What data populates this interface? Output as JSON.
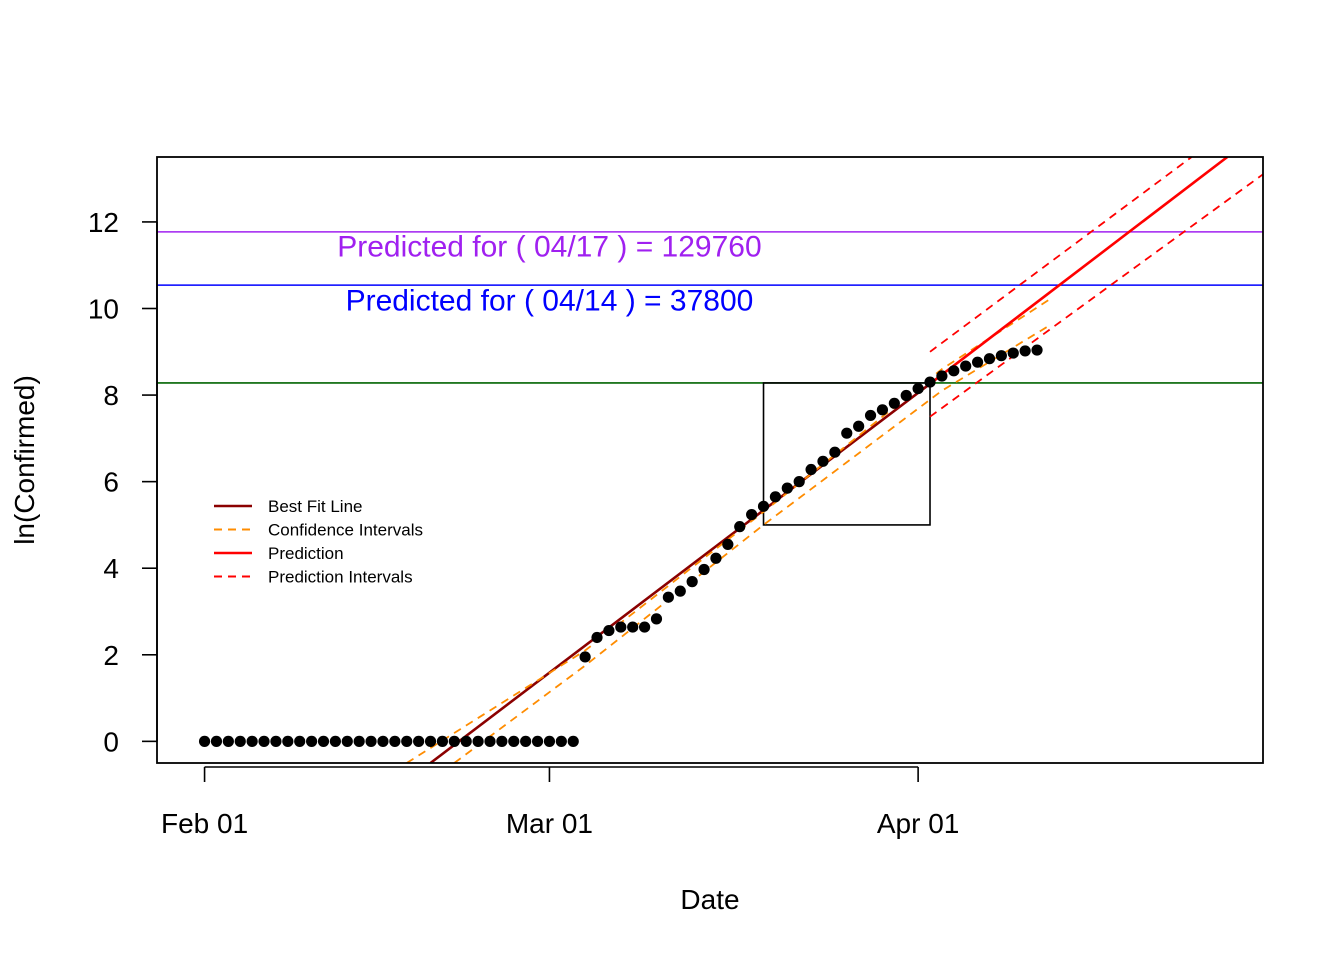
{
  "chart_data": {
    "type": "scatter",
    "title": "",
    "xlabel": "Date",
    "ylabel": "ln(Confirmed)",
    "xlim": [
      "2020-01-28",
      "2020-04-30"
    ],
    "ylim": [
      -0.5,
      13.5
    ],
    "x_ticks": [
      {
        "label": "Feb 01",
        "date": "2020-02-01"
      },
      {
        "label": "Mar 01",
        "date": "2020-03-01"
      },
      {
        "label": "Apr 01",
        "date": "2020-04-01"
      }
    ],
    "y_ticks": [
      0,
      2,
      4,
      6,
      8,
      10,
      12
    ],
    "grid": false,
    "legend_position": "left-middle",
    "series": [
      {
        "name": "ln(Confirmed)",
        "style": "points",
        "color": "#000000",
        "points": [
          [
            "2020-02-01",
            0
          ],
          [
            "2020-02-02",
            0
          ],
          [
            "2020-02-03",
            0
          ],
          [
            "2020-02-04",
            0
          ],
          [
            "2020-02-05",
            0
          ],
          [
            "2020-02-06",
            0
          ],
          [
            "2020-02-07",
            0
          ],
          [
            "2020-02-08",
            0
          ],
          [
            "2020-02-09",
            0
          ],
          [
            "2020-02-10",
            0
          ],
          [
            "2020-02-11",
            0
          ],
          [
            "2020-02-12",
            0
          ],
          [
            "2020-02-13",
            0
          ],
          [
            "2020-02-14",
            0
          ],
          [
            "2020-02-15",
            0
          ],
          [
            "2020-02-16",
            0
          ],
          [
            "2020-02-17",
            0
          ],
          [
            "2020-02-18",
            0
          ],
          [
            "2020-02-19",
            0
          ],
          [
            "2020-02-20",
            0
          ],
          [
            "2020-02-21",
            0
          ],
          [
            "2020-02-22",
            0
          ],
          [
            "2020-02-23",
            0
          ],
          [
            "2020-02-24",
            0
          ],
          [
            "2020-02-25",
            0
          ],
          [
            "2020-02-26",
            0
          ],
          [
            "2020-02-27",
            0
          ],
          [
            "2020-02-28",
            0
          ],
          [
            "2020-02-29",
            0
          ],
          [
            "2020-03-01",
            0
          ],
          [
            "2020-03-02",
            0
          ],
          [
            "2020-03-03",
            0
          ],
          [
            "2020-03-04",
            1.95
          ],
          [
            "2020-03-05",
            2.4
          ],
          [
            "2020-03-06",
            2.56
          ],
          [
            "2020-03-07",
            2.64
          ],
          [
            "2020-03-08",
            2.64
          ],
          [
            "2020-03-09",
            2.64
          ],
          [
            "2020-03-10",
            2.83
          ],
          [
            "2020-03-11",
            3.33
          ],
          [
            "2020-03-12",
            3.47
          ],
          [
            "2020-03-13",
            3.69
          ],
          [
            "2020-03-14",
            3.97
          ],
          [
            "2020-03-15",
            4.23
          ],
          [
            "2020-03-16",
            4.55
          ],
          [
            "2020-03-17",
            4.96
          ],
          [
            "2020-03-18",
            5.24
          ],
          [
            "2020-03-19",
            5.43
          ],
          [
            "2020-03-20",
            5.65
          ],
          [
            "2020-03-21",
            5.85
          ],
          [
            "2020-03-22",
            6.0
          ],
          [
            "2020-03-23",
            6.28
          ],
          [
            "2020-03-24",
            6.47
          ],
          [
            "2020-03-25",
            6.68
          ],
          [
            "2020-03-26",
            7.12
          ],
          [
            "2020-03-27",
            7.28
          ],
          [
            "2020-03-28",
            7.53
          ],
          [
            "2020-03-29",
            7.66
          ],
          [
            "2020-03-30",
            7.81
          ],
          [
            "2020-03-31",
            7.99
          ],
          [
            "2020-04-01",
            8.15
          ],
          [
            "2020-04-02",
            8.3
          ],
          [
            "2020-04-03",
            8.44
          ],
          [
            "2020-04-04",
            8.56
          ],
          [
            "2020-04-05",
            8.67
          ],
          [
            "2020-04-06",
            8.76
          ],
          [
            "2020-04-07",
            8.84
          ],
          [
            "2020-04-08",
            8.91
          ],
          [
            "2020-04-09",
            8.97
          ],
          [
            "2020-04-10",
            9.02
          ],
          [
            "2020-04-11",
            9.04
          ]
        ]
      },
      {
        "name": "Best Fit Line",
        "style": "solid",
        "color": "#8b0000",
        "points": [
          [
            "2020-02-20",
            -0.5
          ],
          [
            "2020-04-02",
            8.26
          ]
        ]
      },
      {
        "name": "Confidence Intervals",
        "style": "dashed",
        "color": "#ff8c00",
        "points": [
          [
            "2020-02-18",
            -0.5
          ],
          [
            "2020-03-04",
            2.1
          ],
          [
            "2020-03-19",
            5.3
          ],
          [
            "2020-04-03",
            8.6
          ],
          [
            "2020-04-12",
            10.2
          ]
        ]
      },
      {
        "name": "Confidence Intervals",
        "style": "dashed",
        "color": "#ff8c00",
        "points": [
          [
            "2020-02-22",
            -0.5
          ],
          [
            "2020-03-04",
            1.75
          ],
          [
            "2020-03-19",
            5.0
          ],
          [
            "2020-04-03",
            8.1
          ],
          [
            "2020-04-12",
            9.6
          ]
        ]
      },
      {
        "name": "Prediction",
        "style": "solid",
        "color": "#ff0000",
        "points": [
          [
            "2020-04-02",
            8.26
          ],
          [
            "2020-04-27",
            13.5
          ]
        ]
      },
      {
        "name": "Prediction Intervals",
        "style": "dashed",
        "color": "#ff0000",
        "points": [
          [
            "2020-04-02",
            9.0
          ],
          [
            "2020-04-24",
            13.5
          ]
        ]
      },
      {
        "name": "Prediction Intervals",
        "style": "dashed",
        "color": "#ff0000",
        "points": [
          [
            "2020-04-02",
            7.5
          ],
          [
            "2020-04-30",
            13.1
          ]
        ]
      }
    ],
    "hlines": [
      {
        "y": 11.77,
        "color": "#a020f0"
      },
      {
        "y": 10.54,
        "color": "#0000ff"
      },
      {
        "y": 8.28,
        "color": "#006400"
      }
    ],
    "rect": {
      "x0": "2020-03-19",
      "x1": "2020-04-02",
      "y0": 5.0,
      "y1": 8.28,
      "color": "#000000"
    },
    "annotations": [
      {
        "text": "Predicted for ( 04/17 ) = 129760",
        "x": "2020-03-01",
        "y": 11.2,
        "color": "#a020f0"
      },
      {
        "text": "Predicted for ( 04/14 ) = 37800",
        "x": "2020-03-01",
        "y": 9.95,
        "color": "#0000ff"
      }
    ],
    "legend": [
      {
        "label": "Best Fit Line",
        "color": "#8b0000",
        "style": "solid"
      },
      {
        "label": "Confidence Intervals",
        "color": "#ff8c00",
        "style": "dashed"
      },
      {
        "label": "Prediction",
        "color": "#ff0000",
        "style": "solid"
      },
      {
        "label": "Prediction Intervals",
        "color": "#ff0000",
        "style": "dashed"
      }
    ]
  }
}
